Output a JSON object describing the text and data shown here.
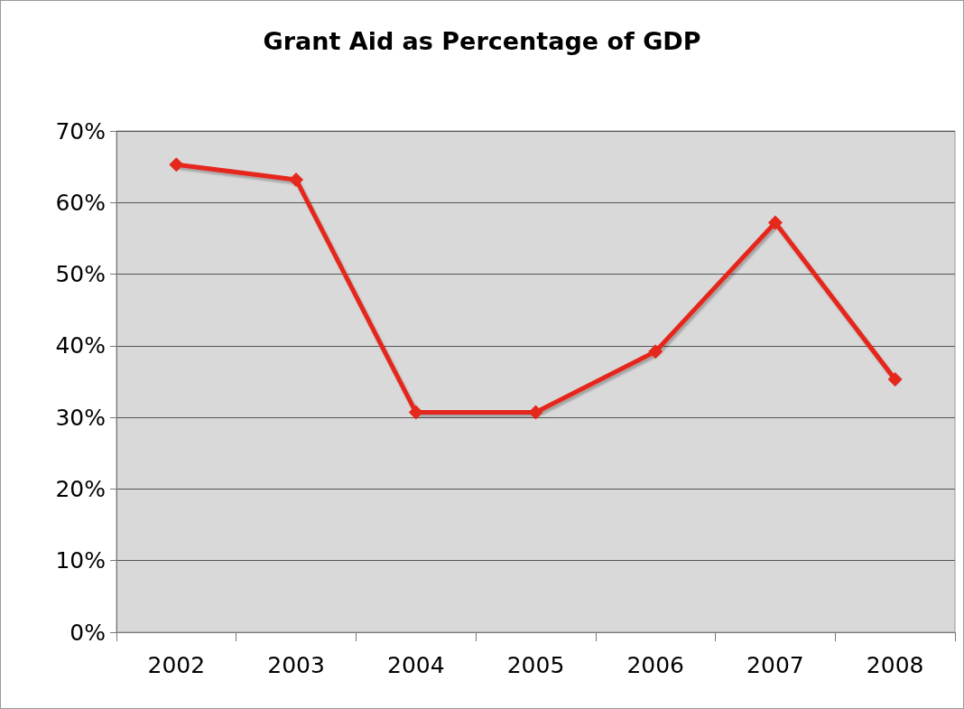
{
  "chart_data": {
    "type": "line",
    "title": "Grant Aid as Percentage of GDP",
    "categories": [
      "2002",
      "2003",
      "2004",
      "2005",
      "2006",
      "2007",
      "2008"
    ],
    "series": [
      {
        "color": "#e5281c",
        "values": [
          65.3,
          63.2,
          30.7,
          30.7,
          39.2,
          57.2,
          35.3
        ]
      }
    ],
    "ylim": [
      0,
      70
    ],
    "yticks": [
      {
        "value": 0,
        "label": "0%"
      },
      {
        "value": 10,
        "label": "10%"
      },
      {
        "value": 20,
        "label": "20%"
      },
      {
        "value": 30,
        "label": "30%"
      },
      {
        "value": 40,
        "label": "40%"
      },
      {
        "value": 50,
        "label": "50%"
      },
      {
        "value": 60,
        "label": "60%"
      },
      {
        "value": 70,
        "label": "70%"
      }
    ],
    "grid": "y",
    "marker": "diamond",
    "line_style": "solid"
  }
}
